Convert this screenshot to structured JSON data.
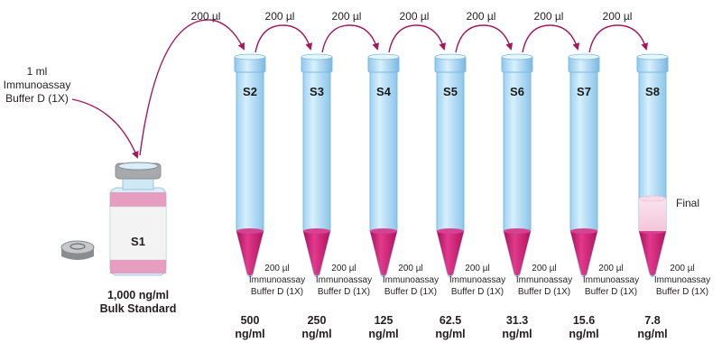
{
  "transfer_volume": "200 µl",
  "stock": {
    "vial_label": "S1",
    "diluent_lines": [
      "1 ml",
      "Immunoassay",
      "Buffer D (1X)"
    ],
    "caption_lines": [
      "1,000 ng/ml",
      "Bulk Standard"
    ]
  },
  "buffer_lines": [
    "200 µl",
    "Immunoassay",
    "Buffer D (1X)"
  ],
  "final_label": "Final",
  "tubes": [
    {
      "label": "S2",
      "conc": "500",
      "unit": "ng/ml"
    },
    {
      "label": "S3",
      "conc": "250",
      "unit": "ng/ml"
    },
    {
      "label": "S4",
      "conc": "125",
      "unit": "ng/ml"
    },
    {
      "label": "S5",
      "conc": "62.5",
      "unit": "ng/ml"
    },
    {
      "label": "S6",
      "conc": "31.3",
      "unit": "ng/ml"
    },
    {
      "label": "S7",
      "conc": "15.6",
      "unit": "ng/ml"
    },
    {
      "label": "S8",
      "conc": "7.8",
      "unit": "ng/ml"
    }
  ],
  "colors": {
    "arrow": "#a3195b",
    "tube_fill": "#bfe3f8",
    "tube_stroke": "#7fb9e0",
    "liquid": "#c8176e",
    "label_pink": "#f2b9d0",
    "cap_gray": "#a7a9ac"
  }
}
